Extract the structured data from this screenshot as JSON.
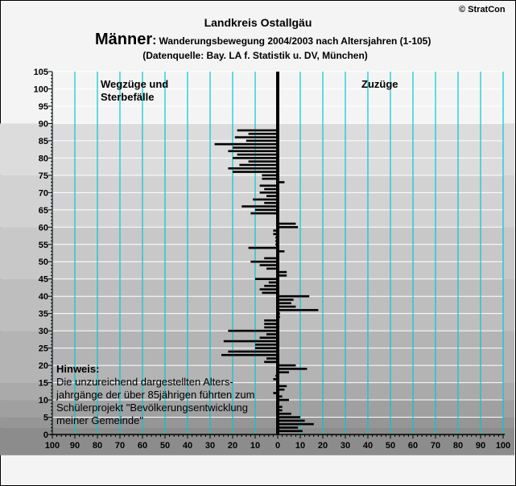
{
  "copyright": "© StratCon",
  "title_region": "Landkreis Ostallgäu",
  "title_main": "Männer",
  "title_colon": ":",
  "title_rest": "Wanderungsbewegung 2004/2003 nach Altersjahren (1-105)",
  "source_line": "(Datenquelle: Bay. LA f. Statistik u. DV, München)",
  "label_left_1": "Wegzüge und",
  "label_left_2": "Sterbefälle",
  "label_right": "Zuzüge",
  "note_title": "Hinweis:",
  "note_lines": [
    "Die unzureichend dargestellten Alters-",
    "jahrgänge der über 85jährigen führten zum",
    "Schülerprojekt \"Bevölkerungsentwicklung",
    "meiner Gemeinde\""
  ],
  "colors": {
    "bar": "#000000",
    "grid_vertical": "#00c8d4",
    "label_left": "#ff0000",
    "label_right": "#008000",
    "band_shades": [
      "#dcdcdc",
      "#d2d2d2",
      "#c8c8c8",
      "#bebebe",
      "#b4b4b4"
    ]
  },
  "chart_data": {
    "type": "bar",
    "orientation": "horizontal",
    "x_range": [
      -100,
      100
    ],
    "x_tick_labels": [
      "100",
      "90",
      "80",
      "70",
      "60",
      "50",
      "40",
      "30",
      "20",
      "10",
      "0",
      "10",
      "20",
      "30",
      "40",
      "50",
      "60",
      "70",
      "80",
      "90",
      "100"
    ],
    "y_range": [
      0,
      105
    ],
    "y_tick_labels": [
      "0",
      "5",
      "10",
      "15",
      "20",
      "25",
      "30",
      "35",
      "40",
      "45",
      "50",
      "55",
      "60",
      "65",
      "70",
      "75",
      "80",
      "85",
      "90",
      "95",
      "100",
      "105"
    ],
    "series": [
      {
        "ages": [
          1,
          2,
          3,
          4,
          5,
          6,
          7,
          8,
          9,
          10,
          11,
          12,
          13,
          14,
          15,
          16,
          17,
          18,
          19,
          20,
          21,
          22,
          23,
          24,
          25,
          26,
          27,
          28,
          29,
          30,
          31,
          32,
          33,
          34,
          35,
          36,
          37,
          38,
          39,
          40,
          41,
          42,
          43,
          44,
          45,
          46,
          47,
          48,
          49,
          50,
          51,
          52,
          53,
          54,
          55,
          56,
          57,
          58,
          59,
          60,
          61,
          62,
          63,
          64,
          65,
          66,
          67,
          68,
          69,
          70,
          71,
          72,
          73,
          74,
          75,
          76,
          77,
          78,
          79,
          80,
          81,
          82,
          83,
          84,
          85,
          86,
          87,
          88
        ],
        "values": [
          11,
          9,
          16,
          12,
          10,
          6,
          2,
          2,
          0,
          5,
          2,
          -2,
          3,
          4,
          0,
          -2,
          -1,
          5,
          13,
          8,
          -6,
          -5,
          -25,
          -22,
          -10,
          -10,
          -24,
          -8,
          -5,
          -22,
          -6,
          -6,
          -6,
          1,
          1,
          18,
          8,
          6,
          7,
          14,
          -7,
          -8,
          -6,
          -4,
          -10,
          4,
          4,
          -5,
          -8,
          -12,
          -6,
          0,
          3,
          -13,
          -1,
          -1,
          -1,
          -2,
          -2,
          9,
          8,
          0,
          0,
          -12,
          -10,
          -16,
          -6,
          -11,
          -5,
          -8,
          -6,
          -8,
          3,
          -7,
          -7,
          -20,
          -22,
          -17,
          -13,
          -20,
          -18,
          -22,
          -20,
          -28,
          -14,
          -19,
          -13,
          -18
        ]
      }
    ],
    "grid": true
  }
}
